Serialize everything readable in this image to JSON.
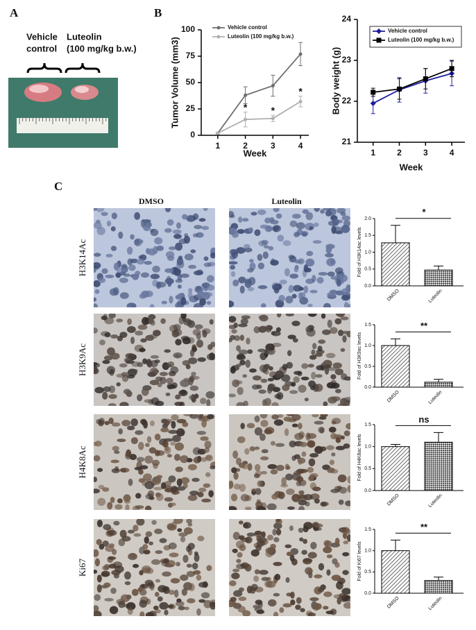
{
  "panel_labels": [
    "A",
    "B",
    "C"
  ],
  "photo_labels": [
    "Vehicle",
    "control",
    "Luteolin",
    "(100 mg/kg b.w.)"
  ],
  "columns": [
    "DMSO",
    "Luteolin"
  ],
  "rows": [
    "H3K14Ac",
    "H3K9Ac",
    "H4K8Ac",
    "Ki67"
  ],
  "chart_data": [
    {
      "type": "line",
      "ylabel": "Tumor Volume (mm3)",
      "xlabel": "Week",
      "x": [
        1,
        2,
        3,
        4
      ],
      "xlim": [
        0.4,
        4.3
      ],
      "xticks": [
        1,
        2,
        3,
        4
      ],
      "ylim": [
        0,
        100
      ],
      "yticks": [
        0,
        25,
        50,
        75,
        100
      ],
      "legend": "upper left",
      "series": [
        {
          "name": "Vehicle control",
          "color": "#6e6e6e",
          "marker": "circle",
          "values": [
            2,
            38,
            47,
            77
          ],
          "errors": [
            1,
            8,
            10,
            11
          ]
        },
        {
          "name": "Luteolin (100 mg/kg b.w.)",
          "color": "#b0b0b0",
          "marker": "circle",
          "values": [
            2,
            15,
            16,
            32
          ],
          "errors": [
            1,
            7,
            3,
            5
          ]
        }
      ],
      "annotations": [
        {
          "text": "*",
          "x": 2
        },
        {
          "text": "*",
          "x": 3
        },
        {
          "text": "*",
          "x": 4
        }
      ]
    },
    {
      "type": "line",
      "ylabel": "Body weight (g)",
      "xlabel": "Week",
      "x": [
        1,
        2,
        3,
        4
      ],
      "xlim": [
        0.4,
        4.5
      ],
      "xticks": [
        1,
        2,
        3,
        4
      ],
      "ylim": [
        21,
        24
      ],
      "yticks": [
        21,
        22,
        23,
        24
      ],
      "legend": "upper right",
      "series": [
        {
          "name": "Vehicle control",
          "color": "#1c1c9c",
          "marker": "diamond",
          "values": [
            21.95,
            22.28,
            22.5,
            22.68
          ],
          "errors": [
            0.25,
            0.3,
            0.3,
            0.3
          ]
        },
        {
          "name": "Luteolin (100 mg/kg b.w.)",
          "color": "#000000",
          "marker": "square",
          "values": [
            22.22,
            22.3,
            22.55,
            22.8
          ],
          "errors": [
            0.1,
            0.25,
            0.25,
            0.2
          ]
        }
      ]
    },
    {
      "type": "bar",
      "ylabel": "Fold of H3K14ac levels",
      "categories": [
        "DMSO",
        "Luteolin"
      ],
      "values": [
        1.28,
        0.47
      ],
      "errors": [
        0.52,
        0.12
      ],
      "significance": "*",
      "ylim": [
        0,
        2
      ],
      "yticks": [
        {
          "value": 0,
          "label": "0.0"
        },
        0.5,
        {
          "value": 1,
          "label": "1.0"
        },
        1.5,
        {
          "value": 2,
          "label": "2.0"
        }
      ]
    },
    {
      "type": "bar",
      "ylabel": "Fold of H3K9ac levels",
      "categories": [
        "DMSO",
        "Luteolin"
      ],
      "values": [
        1.0,
        0.12
      ],
      "errors": [
        0.16,
        0.07
      ],
      "significance": "**",
      "ylim": [
        0,
        1.5
      ],
      "yticks": [
        {
          "value": 0,
          "label": "0.0"
        },
        0.5,
        {
          "value": 1,
          "label": "1.0"
        },
        1.5
      ]
    },
    {
      "type": "bar",
      "ylabel": "Fold of H4K8ac levels",
      "categories": [
        "DMSO",
        "Luteolin"
      ],
      "values": [
        1.0,
        1.1
      ],
      "errors": [
        0.05,
        0.22
      ],
      "significance": "ns",
      "ylim": [
        0,
        1.5
      ],
      "yticks": [
        {
          "value": 0,
          "label": "0.0"
        },
        0.5,
        {
          "value": 1,
          "label": "1.0"
        },
        1.5
      ]
    },
    {
      "type": "bar",
      "ylabel": "Fold of Ki67 levels",
      "categories": [
        "DMSO",
        "Luteolin"
      ],
      "values": [
        1.0,
        0.3
      ],
      "errors": [
        0.25,
        0.08
      ],
      "significance": "**",
      "ylim": [
        0,
        1.5
      ],
      "yticks": [
        {
          "value": 0,
          "label": "0.0"
        },
        0.5,
        {
          "value": 1,
          "label": "1.0"
        },
        1.5
      ]
    }
  ]
}
